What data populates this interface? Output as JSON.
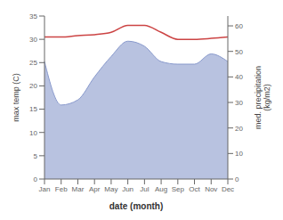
{
  "chart_data": {
    "type": "line",
    "categories": [
      "Jan",
      "Feb",
      "Mar",
      "Apr",
      "May",
      "Jun",
      "Jul",
      "Aug",
      "Sep",
      "Oct",
      "Nov",
      "Dec"
    ],
    "xlabel": "date (month)",
    "ylabel": "max temp (C)",
    "y2label": "med. precipitation\n(kg/m2)",
    "series": [
      {
        "type": "area",
        "axis": "y2",
        "color": "#8899cc",
        "values": [
          46,
          29,
          31,
          40,
          48,
          54,
          52,
          46,
          45,
          45,
          49,
          46
        ]
      },
      {
        "type": "line",
        "color": "#cc4444",
        "values": [
          30.5,
          30.5,
          30.8,
          31.0,
          31.5,
          33.0,
          33.0,
          31.5,
          30.0,
          30.0,
          30.2,
          30.5
        ]
      }
    ],
    "ylim": [
      0,
      35
    ],
    "yticks": [
      0,
      5,
      10,
      15,
      20,
      25,
      30,
      35
    ],
    "y2lim": [
      0,
      63.85
    ],
    "y2ticks": [
      0,
      10,
      20,
      30,
      40,
      50,
      60
    ],
    "grid": false
  }
}
